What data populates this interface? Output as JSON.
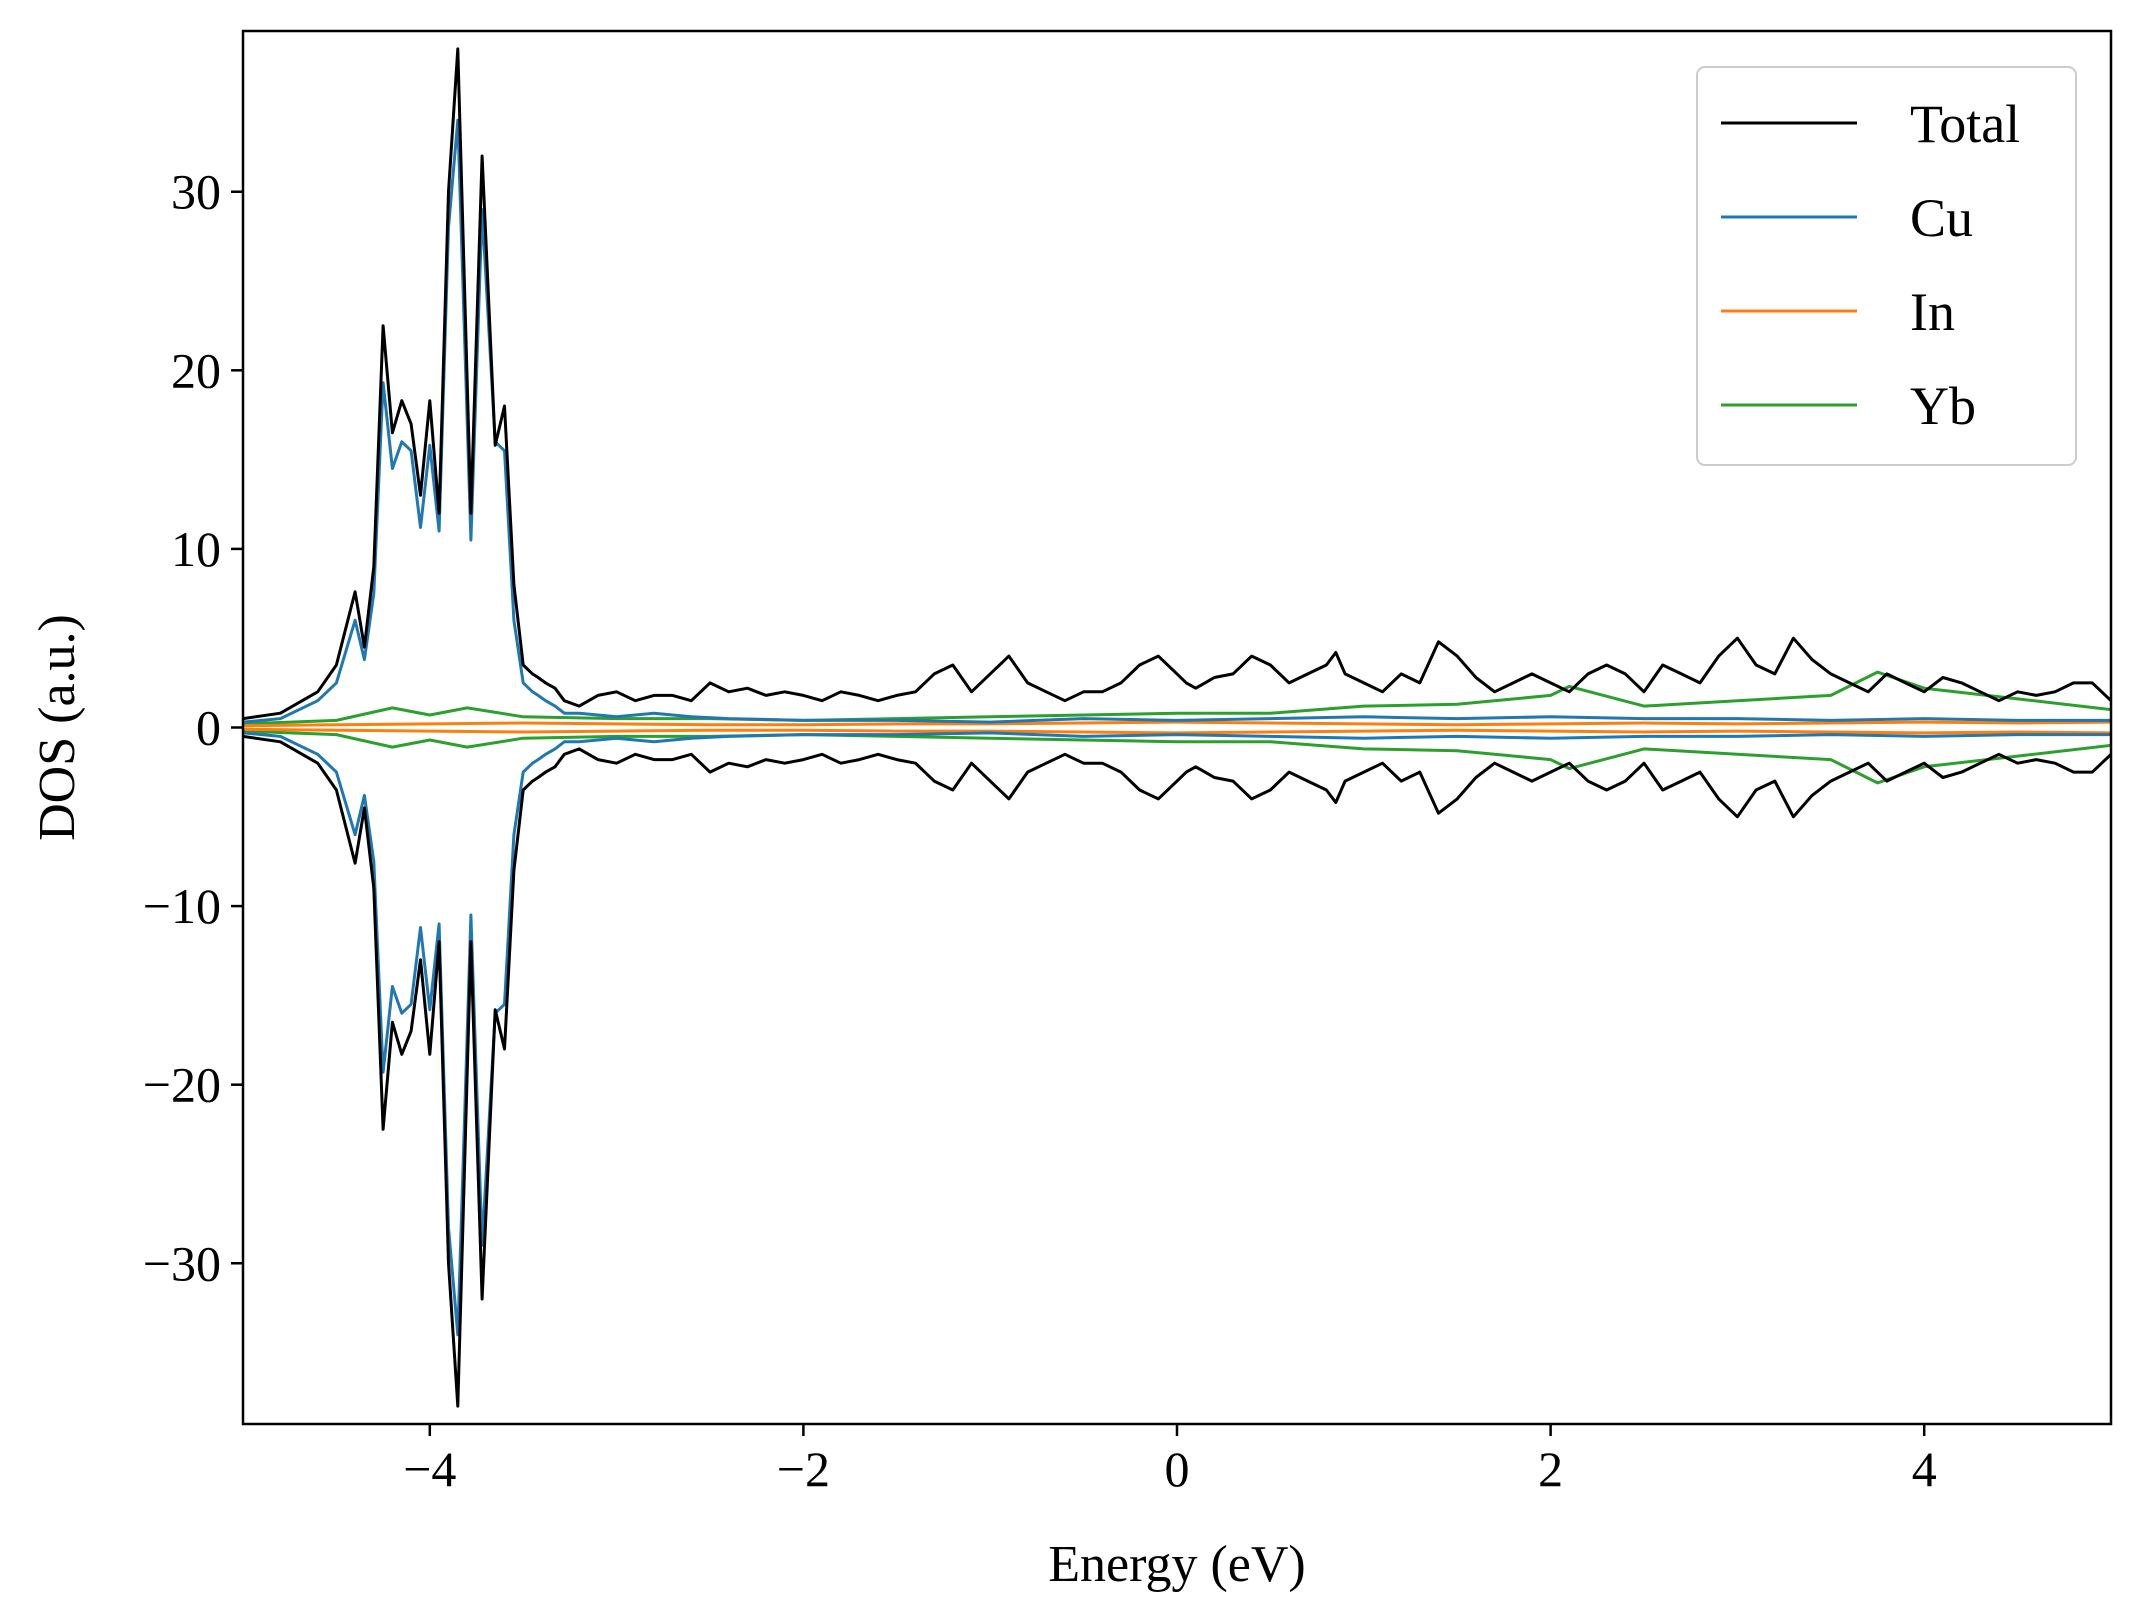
{
  "chart_data": {
    "type": "line",
    "title": "",
    "xlabel": "Energy (eV)",
    "ylabel": "DOS (a.u.)",
    "xlim": [
      -5,
      5
    ],
    "ylim": [
      -39,
      39
    ],
    "x_ticks": [
      -4,
      -2,
      0,
      2,
      4
    ],
    "x_tick_labels": [
      "−4",
      "−2",
      "0",
      "2",
      "4"
    ],
    "y_ticks": [
      -30,
      -20,
      -10,
      0,
      10,
      20,
      30
    ],
    "y_tick_labels": [
      "−30",
      "−20",
      "−10",
      "0",
      "10",
      "20",
      "30"
    ],
    "grid": false,
    "legend_position": "top-right",
    "mirrored_spin_down": true,
    "series": [
      {
        "name": "Total",
        "color": "#000000",
        "x": [
          -5.0,
          -4.8,
          -4.6,
          -4.5,
          -4.4,
          -4.35,
          -4.3,
          -4.25,
          -4.2,
          -4.15,
          -4.1,
          -4.05,
          -4.0,
          -3.95,
          -3.9,
          -3.85,
          -3.78,
          -3.72,
          -3.65,
          -3.6,
          -3.55,
          -3.5,
          -3.45,
          -3.42,
          -3.38,
          -3.33,
          -3.28,
          -3.2,
          -3.1,
          -3.0,
          -2.9,
          -2.8,
          -2.7,
          -2.6,
          -2.5,
          -2.4,
          -2.3,
          -2.2,
          -2.1,
          -2.0,
          -1.9,
          -1.8,
          -1.7,
          -1.6,
          -1.5,
          -1.4,
          -1.3,
          -1.2,
          -1.1,
          -1.0,
          -0.9,
          -0.8,
          -0.7,
          -0.6,
          -0.5,
          -0.4,
          -0.3,
          -0.2,
          -0.1,
          0.0,
          0.05,
          0.1,
          0.15,
          0.2,
          0.3,
          0.4,
          0.5,
          0.6,
          0.7,
          0.8,
          0.85,
          0.9,
          1.0,
          1.1,
          1.2,
          1.3,
          1.4,
          1.5,
          1.6,
          1.7,
          1.8,
          1.9,
          2.0,
          2.1,
          2.2,
          2.3,
          2.4,
          2.5,
          2.6,
          2.7,
          2.8,
          2.9,
          3.0,
          3.1,
          3.2,
          3.3,
          3.4,
          3.5,
          3.6,
          3.7,
          3.8,
          3.9,
          4.0,
          4.1,
          4.2,
          4.3,
          4.4,
          4.5,
          4.6,
          4.7,
          4.8,
          4.9,
          5.0
        ],
        "values": [
          0.5,
          0.8,
          2.0,
          3.5,
          7.6,
          4.5,
          9.0,
          22.5,
          16.5,
          18.3,
          17.0,
          13.0,
          18.3,
          12.0,
          30.0,
          38.0,
          12.0,
          32.0,
          15.8,
          18.0,
          8.0,
          3.5,
          3.0,
          2.8,
          2.5,
          2.2,
          1.5,
          1.2,
          1.8,
          2.0,
          1.5,
          1.8,
          1.8,
          1.5,
          2.5,
          2.0,
          2.2,
          1.8,
          2.0,
          1.8,
          1.5,
          2.0,
          1.8,
          1.5,
          1.8,
          2.0,
          3.0,
          3.5,
          2.0,
          3.0,
          4.0,
          2.5,
          2.0,
          1.5,
          2.0,
          2.0,
          2.5,
          3.5,
          4.0,
          3.0,
          2.5,
          2.2,
          2.5,
          2.8,
          3.0,
          4.0,
          3.5,
          2.5,
          3.0,
          3.5,
          4.2,
          3.0,
          2.5,
          2.0,
          3.0,
          2.5,
          4.8,
          4.0,
          2.8,
          2.0,
          2.5,
          3.0,
          2.5,
          2.0,
          3.0,
          3.5,
          3.0,
          2.0,
          3.5,
          3.0,
          2.5,
          4.0,
          5.0,
          3.5,
          3.0,
          5.0,
          3.8,
          3.0,
          2.5,
          2.0,
          3.0,
          2.5,
          2.0,
          2.8,
          2.5,
          2.0,
          1.5,
          2.0,
          1.8,
          2.0,
          2.5,
          2.5,
          1.5
        ]
      },
      {
        "name": "Cu",
        "color": "#1f77b4",
        "x": [
          -5.0,
          -4.8,
          -4.6,
          -4.5,
          -4.4,
          -4.35,
          -4.3,
          -4.25,
          -4.2,
          -4.15,
          -4.1,
          -4.05,
          -4.0,
          -3.95,
          -3.9,
          -3.85,
          -3.78,
          -3.72,
          -3.65,
          -3.6,
          -3.55,
          -3.5,
          -3.45,
          -3.42,
          -3.38,
          -3.33,
          -3.28,
          -3.2,
          -3.0,
          -2.8,
          -2.6,
          -2.4,
          -2.0,
          -1.5,
          -1.0,
          -0.5,
          0.0,
          0.5,
          1.0,
          1.5,
          2.0,
          2.5,
          3.0,
          3.5,
          4.0,
          4.5,
          5.0
        ],
        "values": [
          0.3,
          0.5,
          1.5,
          2.5,
          6.0,
          3.8,
          7.5,
          19.3,
          14.5,
          16.0,
          15.5,
          11.2,
          15.8,
          11.0,
          28.0,
          34.0,
          10.5,
          29.0,
          16.0,
          15.5,
          6.0,
          2.5,
          2.0,
          1.8,
          1.5,
          1.2,
          0.8,
          0.8,
          0.6,
          0.8,
          0.6,
          0.5,
          0.4,
          0.4,
          0.3,
          0.5,
          0.4,
          0.5,
          0.6,
          0.5,
          0.6,
          0.5,
          0.5,
          0.4,
          0.5,
          0.4,
          0.4
        ]
      },
      {
        "name": "In",
        "color": "#ff7f0e",
        "x": [
          -5.0,
          -4.5,
          -4.0,
          -3.5,
          -3.0,
          -2.5,
          -2.0,
          -1.5,
          -1.0,
          -0.5,
          0.0,
          0.5,
          1.0,
          1.5,
          2.0,
          2.5,
          3.0,
          3.5,
          4.0,
          4.5,
          5.0
        ],
        "values": [
          0.1,
          0.15,
          0.2,
          0.25,
          0.2,
          0.15,
          0.15,
          0.2,
          0.2,
          0.25,
          0.3,
          0.25,
          0.2,
          0.15,
          0.2,
          0.25,
          0.2,
          0.25,
          0.3,
          0.25,
          0.3
        ]
      },
      {
        "name": "Yb",
        "color": "#2ca02c",
        "x": [
          -5.0,
          -4.5,
          -4.2,
          -4.0,
          -3.8,
          -3.5,
          -3.0,
          -2.5,
          -2.0,
          -1.5,
          -1.0,
          -0.5,
          0.0,
          0.5,
          1.0,
          1.5,
          2.0,
          2.1,
          2.5,
          3.0,
          3.5,
          3.75,
          4.0,
          4.5,
          5.0
        ],
        "values": [
          0.2,
          0.4,
          1.1,
          0.7,
          1.1,
          0.6,
          0.5,
          0.5,
          0.4,
          0.5,
          0.6,
          0.7,
          0.8,
          0.8,
          1.2,
          1.3,
          1.8,
          2.3,
          1.2,
          1.5,
          1.8,
          3.1,
          2.2,
          1.6,
          1.0
        ]
      }
    ]
  }
}
